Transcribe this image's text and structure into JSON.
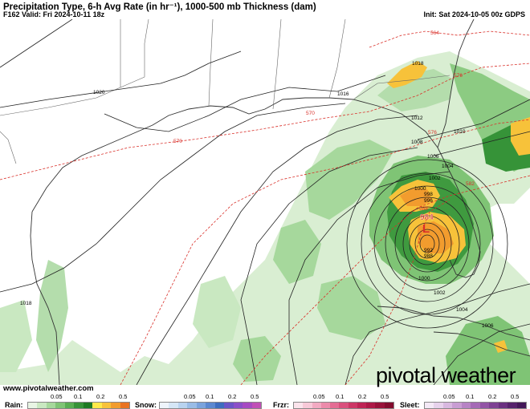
{
  "header": {
    "title": "Precipitation Type, 6-h Avg Rate (in hr⁻¹), 1000-500 mb Thickness (dam)",
    "valid": "F162 Valid: Fri 2024-10-11 18z",
    "init": "Init: Sat 2024-10-05 00z GDPS"
  },
  "website": "www.pivotalweather.com",
  "brand": "pivotal weather",
  "low_center": {
    "pressure": "984",
    "symbol": "L"
  },
  "isobars": {
    "gulf": [
      "1020",
      "1018",
      "1016",
      "1018"
    ],
    "florida": [
      "1012",
      "1010",
      "1008",
      "1006",
      "1004",
      "1002",
      "1000",
      "998",
      "996",
      "992",
      "988",
      "1000",
      "1002",
      "1004",
      "1006"
    ]
  },
  "thickness": [
    "564",
    "570",
    "570",
    "576",
    "576",
    "582",
    "588"
  ],
  "legend": {
    "rain": {
      "label": "Rain:",
      "ticks": [
        "0.05",
        "0.1",
        "0.2",
        "0.5"
      ],
      "colors": [
        "#e8f5e4",
        "#c9e8c1",
        "#a6d89c",
        "#7fc475",
        "#58ae52",
        "#369338",
        "#1d7a23",
        "#ffe94a",
        "#f7c23a",
        "#f29c2e",
        "#e97322"
      ]
    },
    "snow": {
      "label": "Snow:",
      "ticks": [
        "0.05",
        "0.1",
        "0.2",
        "0.5"
      ],
      "colors": [
        "#eef4fb",
        "#d5e6f6",
        "#b8d3ef",
        "#99bce6",
        "#7aa3dc",
        "#5b88d0",
        "#3d6dbf",
        "#6b55c7",
        "#8b4fc8",
        "#a64ac2",
        "#c04fb6"
      ]
    },
    "frzr": {
      "label": "Frzr:",
      "ticks": [
        "0.05",
        "0.1",
        "0.2",
        "0.5"
      ],
      "colors": [
        "#fbe4ec",
        "#f7c9d8",
        "#f2aac2",
        "#ec8bab",
        "#e46d94",
        "#d9507d",
        "#cc3766",
        "#be2455",
        "#ad1947",
        "#98123a",
        "#820c2e"
      ]
    },
    "sleet": {
      "label": "Sleet:",
      "ticks": [
        "0.05",
        "0.1",
        "0.2",
        "0.5"
      ],
      "colors": [
        "#f4e9f6",
        "#e7d2ec",
        "#d8b8e0",
        "#c89dd3",
        "#b783c5",
        "#a56ab6",
        "#9254a5",
        "#7e4193",
        "#6a3080",
        "#56226c",
        "#431858"
      ]
    }
  }
}
